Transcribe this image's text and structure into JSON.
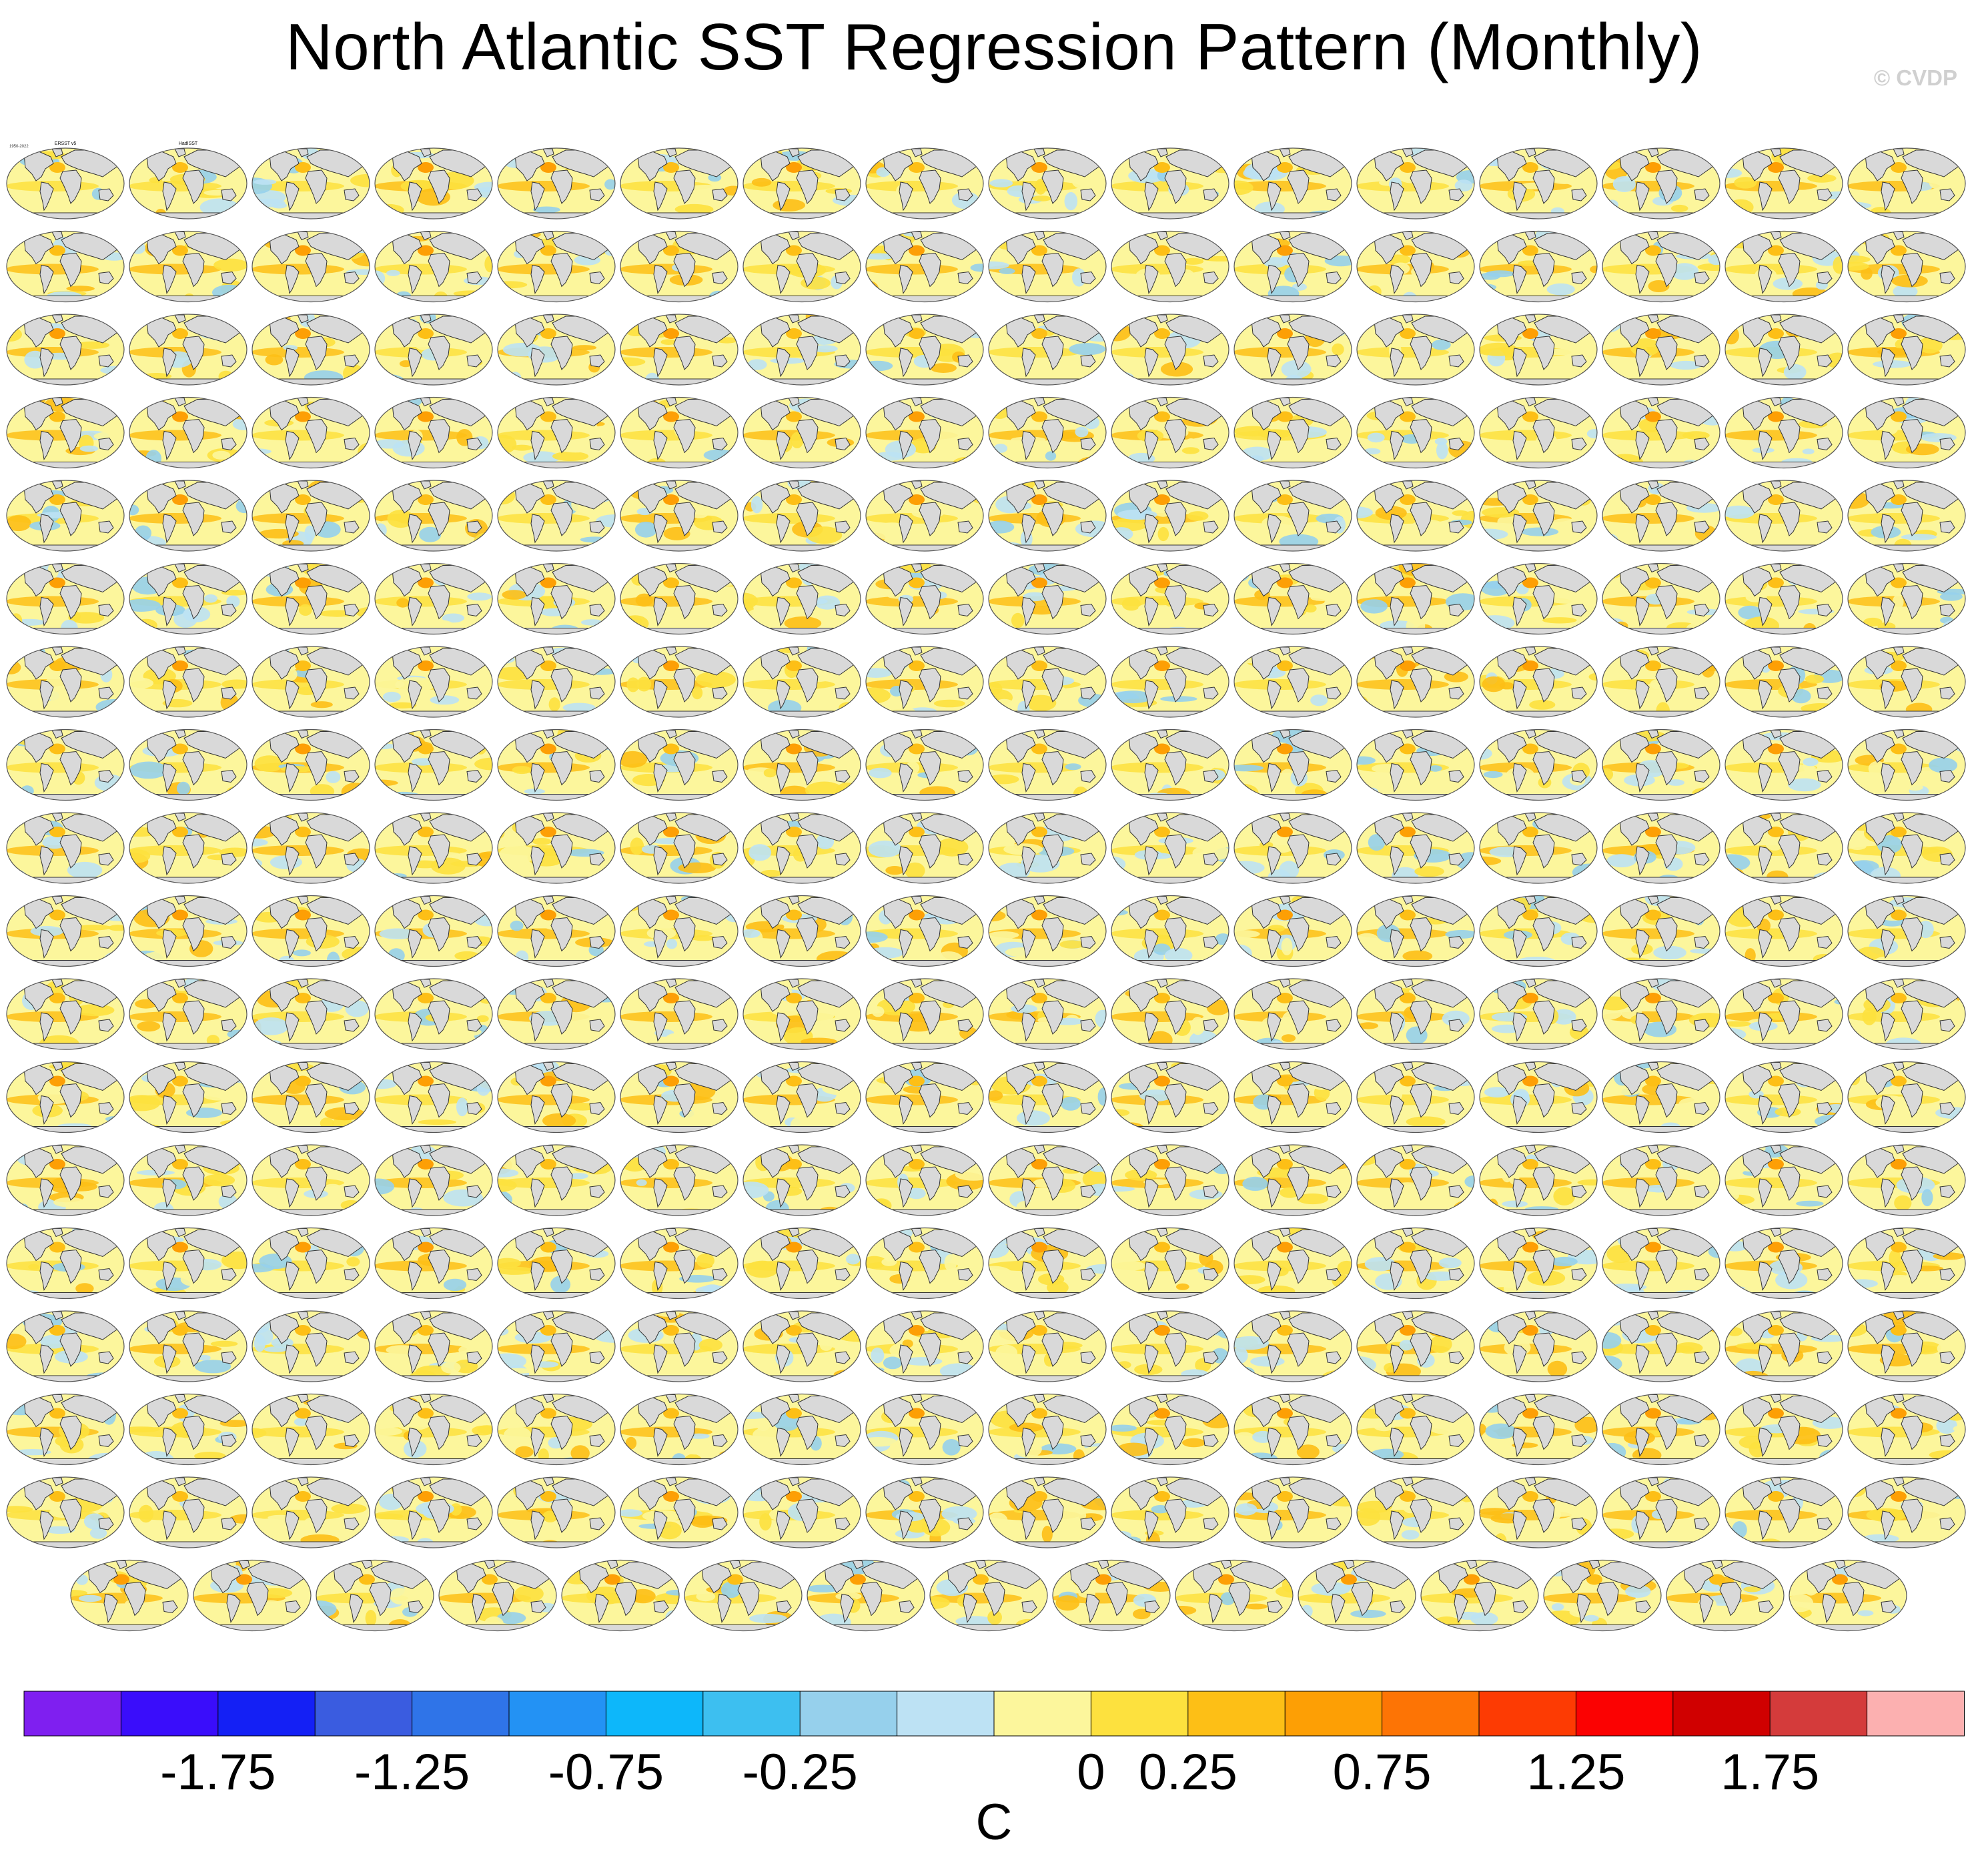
{
  "title": "North Atlantic SST Regression Pattern (Monthly)",
  "watermark": "© CVDP",
  "chart_data": {
    "type": "heatmap",
    "description_kind": "panel grid of global map regression patterns",
    "title": "North Atlantic SST Regression Pattern (Monthly)",
    "panel_layout": {
      "rows": 18,
      "columns": 16,
      "last_row_columns": 15
    },
    "panels": [
      {
        "title": "ERSST v5",
        "period": "1950-2022"
      },
      {
        "title": "HadISST",
        "period": ""
      }
    ],
    "colorbar": {
      "unit": "C",
      "levels": [
        -2.0,
        -1.75,
        -1.5,
        -1.25,
        -1.0,
        -0.75,
        -0.5,
        -0.25,
        -0.1,
        0,
        0.1,
        0.25,
        0.5,
        0.75,
        1.0,
        1.25,
        1.5,
        1.75,
        2.0,
        2.25
      ],
      "colors": [
        "#7f1ff0",
        "#3a0dfb",
        "#1420f5",
        "#3a5ce0",
        "#2f74e8",
        "#2392f4",
        "#0db7fa",
        "#3dbff0",
        "#96d0ec",
        "#bde2f4",
        "#fcf69c",
        "#fde13e",
        "#fdbf16",
        "#fd9f05",
        "#fd7405",
        "#fd3b03",
        "#fb0202",
        "#d00000",
        "#d43b3b",
        "#fcb0b0"
      ],
      "tick_labels": [
        "-1.75",
        "-1.25",
        "-0.75",
        "-0.25",
        "0",
        "0.25",
        "0.75",
        "1.25",
        "1.75"
      ]
    }
  }
}
